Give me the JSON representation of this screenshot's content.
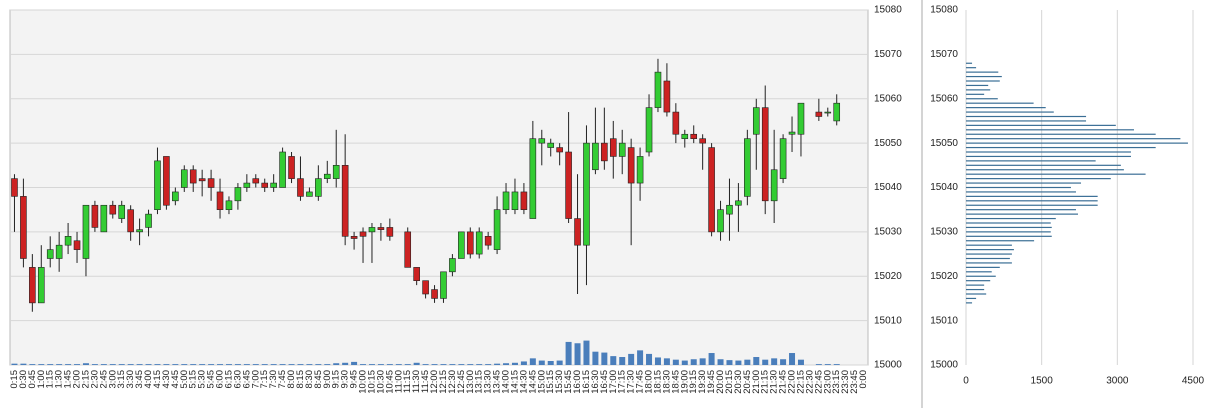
{
  "chart_data": [
    {
      "type": "candlestick",
      "categories": [
        "0:15",
        "0:30",
        "0:45",
        "1:00",
        "1:15",
        "1:30",
        "1:45",
        "2:00",
        "2:15",
        "2:30",
        "2:45",
        "3:00",
        "3:15",
        "3:30",
        "3:45",
        "4:00",
        "4:15",
        "4:30",
        "4:45",
        "5:00",
        "5:15",
        "5:30",
        "5:45",
        "6:00",
        "6:15",
        "6:30",
        "6:45",
        "7:00",
        "7:15",
        "7:30",
        "7:45",
        "8:00",
        "8:15",
        "8:30",
        "8:45",
        "9:00",
        "9:15",
        "9:30",
        "9:45",
        "10:00",
        "10:15",
        "10:30",
        "10:45",
        "11:00",
        "11:15",
        "11:30",
        "11:45",
        "12:00",
        "12:15",
        "12:30",
        "12:45",
        "13:00",
        "13:15",
        "13:30",
        "13:45",
        "14:00",
        "14:15",
        "14:30",
        "14:45",
        "15:00",
        "15:15",
        "15:30",
        "15:45",
        "16:00",
        "16:15",
        "16:30",
        "16:45",
        "17:00",
        "17:15",
        "17:30",
        "17:45",
        "18:00",
        "18:15",
        "18:30",
        "18:45",
        "19:00",
        "19:15",
        "19:30",
        "19:45",
        "20:00",
        "20:15",
        "20:30",
        "20:45",
        "21:00",
        "21:15",
        "21:30",
        "21:45",
        "22:00",
        "22:15",
        "22:30",
        "22:45",
        "23:00",
        "23:15",
        "23:30",
        "23:45",
        "0:00"
      ],
      "open": [
        15042,
        15038,
        15022,
        15014,
        15024,
        15024,
        15027,
        15028,
        15024,
        15036,
        15030,
        15036,
        15033,
        15035,
        15030,
        15031,
        15035,
        15047,
        15037,
        15040,
        15044,
        15042,
        15042,
        15039,
        15035,
        15037,
        15040,
        15042,
        15041,
        15040,
        15040,
        15047,
        15042,
        15038,
        15038,
        15042,
        15042,
        15045,
        15029,
        15030,
        15030,
        15031,
        15031,
        null,
        15030,
        15022,
        15019,
        15017,
        15015,
        15021,
        15024,
        15030,
        15025,
        15029,
        15026,
        15035,
        15035,
        15039,
        15033,
        15050,
        15049,
        15049,
        15048,
        15033,
        15027,
        15044,
        15050,
        15051,
        15047,
        15049,
        15041,
        15048,
        15058,
        15064,
        15057,
        15051,
        15052,
        15051,
        15049,
        15030,
        15034,
        15036,
        15038,
        15052,
        15058,
        15037,
        15042,
        15052,
        15052,
        null,
        15057,
        15057,
        15055,
        null,
        null,
        null
      ],
      "high": [
        15043,
        15042,
        15025,
        15027,
        15029,
        15030,
        15032,
        15030,
        15036,
        15037,
        15036,
        15037,
        15037,
        15036,
        15033,
        15035,
        15049,
        15047,
        15040,
        15045,
        15045,
        15044,
        15044,
        15042,
        15038,
        15041,
        15043,
        15043,
        15042,
        15043,
        15049,
        15048,
        15047,
        15040,
        15045,
        15046,
        15053,
        15052,
        15030,
        15031,
        15032,
        15032,
        15033,
        null,
        15031,
        15022,
        15019,
        15018,
        15021,
        15025,
        15030,
        15031,
        15031,
        15030,
        15038,
        15041,
        15042,
        15041,
        15055,
        15053,
        15051,
        15050,
        15057,
        15043,
        15054,
        15058,
        15058,
        15055,
        15053,
        15051,
        15049,
        15061,
        15069,
        15068,
        15059,
        15053,
        15054,
        15052,
        15050,
        15037,
        15042,
        15041,
        15053,
        15060,
        15063,
        15053,
        15052,
        15056,
        15059,
        null,
        15060,
        15058,
        15061,
        null,
        null,
        null
      ],
      "low": [
        15030,
        15022,
        15012,
        15014,
        15022,
        15021,
        15025,
        15023,
        15020,
        15030,
        15030,
        15033,
        15032,
        15028,
        15027,
        15029,
        15034,
        15035,
        15036,
        15039,
        15039,
        15038,
        15037,
        15033,
        15034,
        15035,
        15039,
        15040,
        15039,
        15039,
        15040,
        15041,
        15037,
        15038,
        15037,
        15041,
        15040,
        15027,
        15026,
        15023,
        15023,
        15028,
        15028,
        null,
        15022,
        15018,
        15015,
        15014,
        15014,
        15020,
        15024,
        15024,
        15024,
        15026,
        15025,
        15034,
        15034,
        15034,
        15033,
        15045,
        15047,
        15045,
        15032,
        15016,
        15018,
        15043,
        15044,
        15042,
        15043,
        15027,
        15037,
        15047,
        15057,
        15056,
        15050,
        15049,
        15050,
        15044,
        15029,
        15028,
        15028,
        15030,
        15036,
        15044,
        15034,
        15032,
        15041,
        15048,
        15047,
        null,
        15055,
        15056,
        15054,
        null,
        null,
        null
      ],
      "close": [
        15038,
        15024,
        15014,
        15022,
        15026,
        15027,
        15029,
        15026,
        15036,
        15031,
        15036,
        15034,
        15036,
        15030,
        15030.5,
        15034,
        15046,
        15036,
        15039,
        15044,
        15041,
        15041.5,
        15040,
        15035,
        15037,
        15040,
        15041,
        15041,
        15040,
        15041,
        15048,
        15042,
        15038,
        15039,
        15042,
        15043,
        15045,
        15029,
        15028.5,
        15029,
        15031,
        15030.5,
        15029,
        null,
        15022,
        15019,
        15016,
        15015,
        15021,
        15024,
        15030,
        15025,
        15030,
        15027,
        15035,
        15039,
        15039,
        15035,
        15051,
        15051,
        15050,
        15048,
        15033,
        15027,
        15050,
        15050,
        15046,
        15047,
        15050,
        15041,
        15047,
        15058,
        15066,
        15057,
        15052,
        15052,
        15051,
        15050,
        15030,
        15035,
        15036,
        15037,
        15051,
        15058,
        15037,
        15044,
        15051,
        15052.5,
        15059,
        null,
        15056,
        15057,
        15059,
        null,
        null,
        null
      ],
      "volume": [
        0.3,
        0.3,
        0.2,
        0.2,
        0.2,
        0.2,
        0.2,
        0.2,
        0.4,
        0.2,
        0.2,
        0.2,
        0.2,
        0.2,
        0.2,
        0.2,
        0.2,
        0.2,
        0.2,
        0.2,
        0.2,
        0.2,
        0.2,
        0.2,
        0.2,
        0.2,
        0.2,
        0.2,
        0.2,
        0.2,
        0.2,
        0.2,
        0.2,
        0.2,
        0.2,
        0.2,
        0.4,
        0.5,
        0.7,
        0.2,
        0.2,
        0.2,
        0.2,
        0.2,
        0.2,
        0.5,
        0.2,
        0.2,
        0.2,
        0.2,
        0.2,
        0.2,
        0.2,
        0.2,
        0.3,
        0.4,
        0.5,
        0.8,
        1.5,
        1.0,
        0.9,
        1.0,
        5.2,
        4.9,
        5.5,
        3.0,
        2.8,
        2.0,
        1.8,
        2.5,
        3.3,
        2.5,
        1.7,
        1.5,
        1.2,
        1.0,
        1.3,
        1.5,
        2.7,
        1.3,
        1.1,
        1.0,
        1.2,
        1.8,
        1.2,
        1.5,
        1.3,
        2.7,
        1.2,
        null,
        0.2,
        0.2,
        0.2,
        null,
        null,
        null
      ],
      "up_color": "#33cc33",
      "down_color": "#cc2222",
      "volume_color": "#4a7ebb",
      "ylim": [
        15000,
        15080
      ],
      "yticks": [
        15000,
        15010,
        15020,
        15030,
        15040,
        15050,
        15060,
        15070,
        15080
      ],
      "grid": true
    },
    {
      "type": "bar",
      "orientation": "horizontal",
      "y": [
        15068,
        15067,
        15066,
        15065,
        15064,
        15063,
        15062,
        15061,
        15060,
        15059,
        15058,
        15057,
        15056,
        15055,
        15054,
        15053,
        15052,
        15051,
        15050,
        15049,
        15048,
        15047,
        15046,
        15045,
        15044,
        15043,
        15042,
        15041,
        15040,
        15039,
        15038,
        15037,
        15036,
        15035,
        15034,
        15033,
        15032,
        15031,
        15030,
        15029,
        15028,
        15027,
        15026,
        15025,
        15024,
        15023,
        15022,
        15021,
        15020,
        15019,
        15018,
        15017,
        15016,
        15015,
        15014
      ],
      "values": [
        120,
        200,
        640,
        710,
        670,
        440,
        480,
        360,
        630,
        1340,
        1580,
        1740,
        2380,
        2380,
        2970,
        3330,
        3760,
        4250,
        4400,
        3760,
        3270,
        3270,
        2570,
        3070,
        3130,
        3560,
        2870,
        2280,
        2080,
        2180,
        2610,
        2610,
        2610,
        2180,
        2220,
        1780,
        1680,
        1700,
        1680,
        1700,
        1350,
        910,
        950,
        910,
        870,
        910,
        670,
        510,
        590,
        480,
        360,
        360,
        400,
        200,
        120
      ],
      "color": "#3a6e95",
      "xlim": [
        0,
        4500
      ],
      "xticks": [
        0,
        1500,
        3000,
        4500
      ],
      "ylim": [
        15000,
        15080
      ],
      "yticks": [
        15000,
        15010,
        15020,
        15030,
        15040,
        15050,
        15060,
        15070,
        15080
      ],
      "grid": true
    }
  ]
}
